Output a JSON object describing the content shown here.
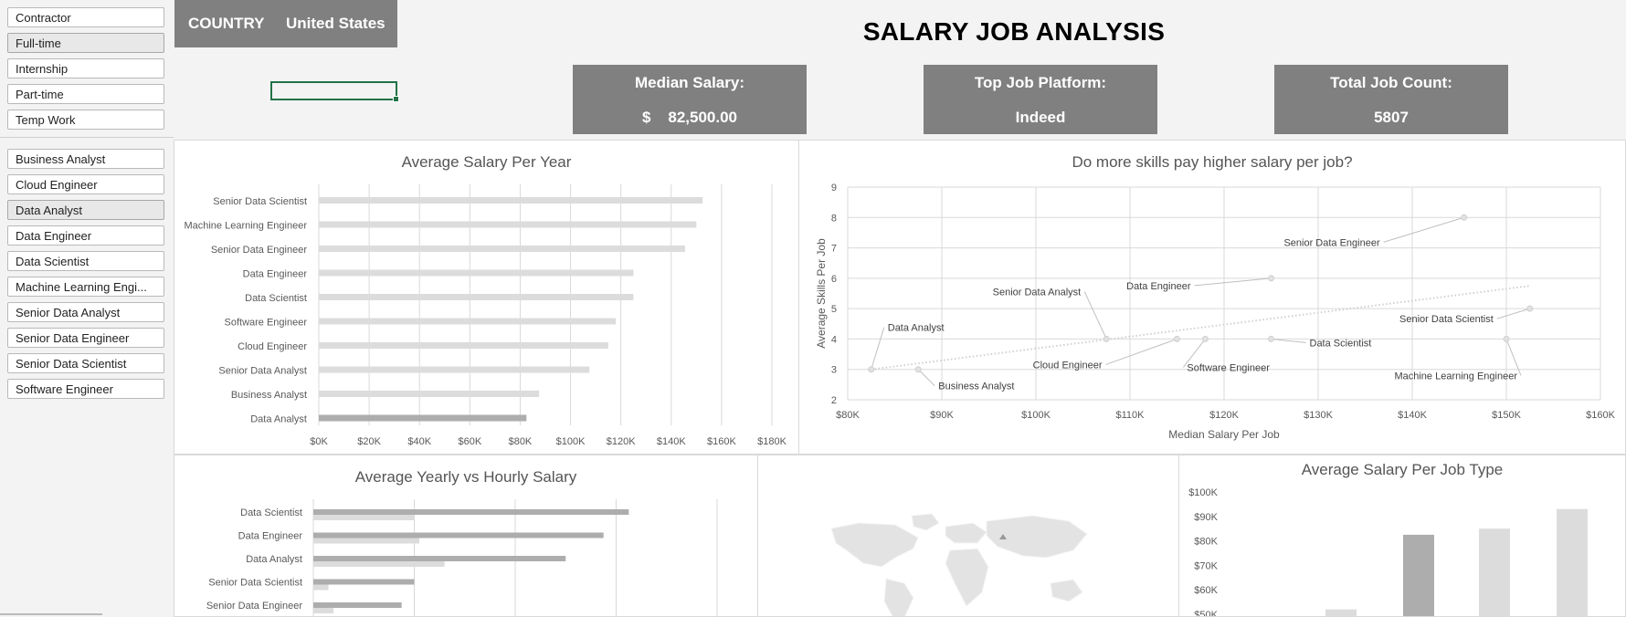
{
  "job_type_slicer": [
    {
      "label": "Contractor",
      "selected": false
    },
    {
      "label": "Full-time",
      "selected": true
    },
    {
      "label": "Internship",
      "selected": false
    },
    {
      "label": "Part-time",
      "selected": false
    },
    {
      "label": "Temp Work",
      "selected": false
    }
  ],
  "job_title_slicer": [
    {
      "label": "Business Analyst",
      "selected": false
    },
    {
      "label": "Cloud Engineer",
      "selected": false
    },
    {
      "label": "Data Analyst",
      "selected": true
    },
    {
      "label": "Data Engineer",
      "selected": false
    },
    {
      "label": "Data Scientist",
      "selected": false
    },
    {
      "label": "Machine Learning Engi...",
      "selected": false
    },
    {
      "label": "Senior Data Analyst",
      "selected": false
    },
    {
      "label": "Senior Data Engineer",
      "selected": false
    },
    {
      "label": "Senior Data Scientist",
      "selected": false
    },
    {
      "label": "Software Engineer",
      "selected": false
    }
  ],
  "country_filter": {
    "label": "COUNTRY",
    "value": "United States"
  },
  "dashboard_title": "SALARY JOB ANALYSIS",
  "kpis": {
    "median_salary": {
      "label": "Median Salary:",
      "currency": "$",
      "value": "82,500.00"
    },
    "top_platform": {
      "label": "Top Job Platform:",
      "value": "Indeed"
    },
    "job_count": {
      "label": "Total Job Count:",
      "value": "5807"
    }
  },
  "colors": {
    "bar_light": "#dcdcdc",
    "bar_dark": "#adadad",
    "kpi_bg": "#808080",
    "grid": "#d9d9d9",
    "trend": "#d0d0d0"
  },
  "chart_data": [
    {
      "id": "avg_salary_per_year",
      "type": "bar",
      "orientation": "horizontal",
      "title": "Average Salary Per Year",
      "categories": [
        "Senior Data Scientist",
        "Machine Learning Engineer",
        "Senior Data Engineer",
        "Data Engineer",
        "Data Scientist",
        "Software Engineer",
        "Cloud Engineer",
        "Senior Data Analyst",
        "Business Analyst",
        "Data Analyst"
      ],
      "values": [
        152500,
        150000,
        145500,
        125000,
        125000,
        118000,
        115000,
        107500,
        87500,
        82500
      ],
      "highlight": "Data Analyst",
      "xlim": [
        0,
        180000
      ],
      "xticks": [
        0,
        20000,
        40000,
        60000,
        80000,
        100000,
        120000,
        140000,
        160000,
        180000
      ],
      "xtick_labels": [
        "$0K",
        "$20K",
        "$40K",
        "$60K",
        "$80K",
        "$100K",
        "$120K",
        "$140K",
        "$160K",
        "$180K"
      ],
      "grid": true
    },
    {
      "id": "skills_vs_salary",
      "type": "scatter",
      "title": "Do more skills pay higher salary per job?",
      "xlabel": "Median Salary Per Job",
      "ylabel": "Average Skills Per Job",
      "xlim": [
        80000,
        160000
      ],
      "ylim": [
        2,
        9
      ],
      "xticks": [
        80000,
        90000,
        100000,
        110000,
        120000,
        130000,
        140000,
        150000,
        160000
      ],
      "xtick_labels": [
        "$80K",
        "$90K",
        "$100K",
        "$110K",
        "$120K",
        "$130K",
        "$140K",
        "$150K",
        "$160K"
      ],
      "yticks": [
        2,
        3,
        4,
        5,
        6,
        7,
        8,
        9
      ],
      "ytick_labels": [
        "2",
        "3",
        "4",
        "5",
        "6",
        "7",
        "8",
        "9"
      ],
      "points": [
        {
          "label": "Data Analyst",
          "x": 82500,
          "y": 3
        },
        {
          "label": "Business Analyst",
          "x": 87500,
          "y": 3
        },
        {
          "label": "Senior Data Analyst",
          "x": 107500,
          "y": 4
        },
        {
          "label": "Cloud Engineer",
          "x": 115000,
          "y": 4
        },
        {
          "label": "Software Engineer",
          "x": 118000,
          "y": 4
        },
        {
          "label": "Data Scientist",
          "x": 125000,
          "y": 4
        },
        {
          "label": "Data Engineer",
          "x": 125000,
          "y": 6
        },
        {
          "label": "Senior Data Engineer",
          "x": 145500,
          "y": 8
        },
        {
          "label": "Machine Learning Engineer",
          "x": 150000,
          "y": 4
        },
        {
          "label": "Senior Data Scientist",
          "x": 152500,
          "y": 5
        }
      ],
      "trendline": {
        "x0": 82500,
        "y0": 3,
        "x1": 152500,
        "y1": 5.75
      },
      "grid": true
    },
    {
      "id": "yearly_vs_hourly",
      "type": "bar",
      "orientation": "horizontal",
      "title": "Average Yearly vs Hourly Salary",
      "categories": [
        "Data Scientist",
        "Data Engineer",
        "Data Analyst",
        "Senior Data Scientist",
        "Senior Data Engineer"
      ],
      "series": [
        {
          "values": [
            125000,
            115000,
            100000,
            40000,
            35000
          ]
        },
        {
          "values": [
            40000,
            42000,
            52000,
            6000,
            8000
          ]
        }
      ],
      "grid": true
    },
    {
      "id": "avg_salary_per_job_type",
      "type": "bar",
      "orientation": "vertical",
      "title": "Average Salary Per Job Type",
      "values": [
        52000,
        82500,
        85000,
        93000
      ],
      "highlight_index": 1,
      "ylim": [
        50000,
        100000
      ],
      "yticks": [
        50000,
        60000,
        70000,
        80000,
        90000,
        100000
      ],
      "ytick_labels": [
        "$50K",
        "$60K",
        "$70K",
        "$80K",
        "$90K",
        "$100K"
      ]
    }
  ]
}
